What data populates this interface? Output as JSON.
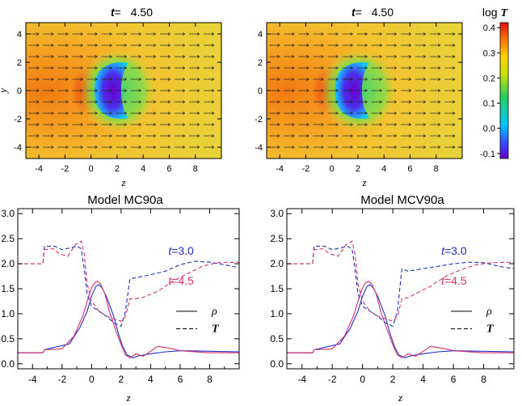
{
  "colors": {
    "blue": "#1f2fc8",
    "magenta": "#d8306e",
    "arrow": "#222222"
  },
  "chart_data": [
    {
      "type": "heatmap",
      "title": {
        "t_label": "t",
        "eq": "=",
        "value": "4.50"
      },
      "xlabel": "z",
      "ylabel": "y",
      "xlim": [
        -5,
        10
      ],
      "ylim": [
        -4.8,
        4.8
      ],
      "xticks": [
        "-4",
        "-2",
        "0",
        "2",
        "4",
        "6",
        "8"
      ],
      "yticks": [
        "4",
        "2",
        "0",
        "-2",
        "-4"
      ],
      "field": "log T",
      "grid": "off"
    },
    {
      "type": "heatmap",
      "title": {
        "t_label": "t",
        "eq": "=",
        "value": "4.50"
      },
      "xlabel": "z",
      "ylabel": "",
      "xlim": [
        -5,
        10
      ],
      "ylim": [
        -4.8,
        4.8
      ],
      "xticks": [
        "-4",
        "-2",
        "0",
        "2",
        "4",
        "6",
        "8"
      ],
      "yticks": [
        "4",
        "2",
        "0",
        "-2",
        "-4"
      ],
      "field": "log T",
      "grid": "off"
    },
    {
      "type": "colorbar",
      "label_prefix": "log",
      "label_var": "T",
      "range": [
        -0.12,
        0.42
      ],
      "ticks": [
        "0.4",
        "0.3",
        "0.2",
        "0.1",
        "0.0",
        "-0.1"
      ],
      "tick_values": [
        0.4,
        0.3,
        0.2,
        0.1,
        0.0,
        -0.1
      ]
    },
    {
      "type": "line",
      "title": "Model MC90a",
      "xlabel": "z",
      "ylabel": "",
      "xlim": [
        -5,
        10
      ],
      "ylim": [
        -0.1,
        3.1
      ],
      "xticks": [
        "-4",
        "-2",
        "0",
        "2",
        "4",
        "6",
        "8"
      ],
      "yticks": [
        "3.0",
        "2.5",
        "2.0",
        "1.5",
        "1.0",
        "0.5",
        "0.0"
      ],
      "legend": {
        "position": "bottom-right",
        "rho": "ρ",
        "T": "T"
      },
      "annotations": [
        {
          "text": "t=3.0",
          "color": "blue",
          "x": 5.2,
          "y": 2.18
        },
        {
          "text": "t=4.5",
          "color": "magenta",
          "x": 5.2,
          "y": 1.58
        }
      ],
      "series": [
        {
          "name": "rho, t=3.0",
          "color": "blue",
          "dash": "solid",
          "x": [
            -5,
            -3.3,
            -3.2,
            -1.5,
            -0.8,
            -0.3,
            0.0,
            0.3,
            0.5,
            0.7,
            1.0,
            1.5,
            1.8,
            2.1,
            2.4,
            2.8,
            3.2,
            4,
            5,
            6,
            8,
            10
          ],
          "y": [
            0.22,
            0.22,
            0.28,
            0.4,
            0.72,
            1.05,
            1.35,
            1.55,
            1.58,
            1.52,
            1.35,
            0.95,
            0.62,
            0.35,
            0.18,
            0.12,
            0.16,
            0.2,
            0.24,
            0.26,
            0.25,
            0.24
          ]
        },
        {
          "name": "rho, t=4.5",
          "color": "magenta",
          "dash": "solid",
          "x": [
            -5,
            -3.3,
            -3.2,
            -2.0,
            -1.2,
            -0.6,
            -0.2,
            0.0,
            0.2,
            0.4,
            0.6,
            0.9,
            1.2,
            1.6,
            2.0,
            2.3,
            2.6,
            3.0,
            3.5,
            4.5,
            5.5,
            6,
            8,
            10
          ],
          "y": [
            0.22,
            0.22,
            0.28,
            0.3,
            0.55,
            0.95,
            1.35,
            1.52,
            1.62,
            1.65,
            1.6,
            1.4,
            1.05,
            0.7,
            0.38,
            0.18,
            0.12,
            0.2,
            0.15,
            0.35,
            0.3,
            0.26,
            0.22,
            0.22
          ]
        },
        {
          "name": "T, t=3.0",
          "color": "blue",
          "dash": "dashed",
          "x": [
            -5,
            -3.3,
            -3.2,
            -2.5,
            -2.0,
            -1.4,
            -1.0,
            -0.7,
            -0.5,
            -0.3,
            0.0,
            0.5,
            1.0,
            1.5,
            2.0,
            2.3,
            2.6,
            3.0,
            4.0,
            5.0,
            6.0,
            7.0,
            8.0,
            9.0,
            10
          ],
          "y": [
            2.0,
            2.0,
            2.35,
            2.35,
            2.28,
            2.32,
            2.35,
            2.3,
            1.9,
            1.4,
            1.15,
            1.05,
            0.95,
            0.82,
            0.75,
            1.05,
            1.7,
            1.72,
            1.78,
            1.85,
            1.98,
            2.05,
            2.03,
            1.98,
            1.92
          ]
        },
        {
          "name": "T, t=4.5",
          "color": "magenta",
          "dash": "dashed",
          "x": [
            -5,
            -3.3,
            -3.2,
            -2.6,
            -2.2,
            -1.6,
            -1.1,
            -0.7,
            -0.5,
            -0.3,
            0.0,
            0.5,
            1.0,
            1.5,
            2.0,
            2.3,
            2.6,
            3.0,
            3.5,
            4.5,
            5.5,
            6.5,
            7.5,
            8.5,
            10
          ],
          "y": [
            2.0,
            2.0,
            2.28,
            2.3,
            2.2,
            2.15,
            2.38,
            2.45,
            2.2,
            1.6,
            1.25,
            1.05,
            0.95,
            0.9,
            0.85,
            0.95,
            1.3,
            1.3,
            1.33,
            1.45,
            1.65,
            1.8,
            1.95,
            2.02,
            2.03
          ]
        }
      ]
    },
    {
      "type": "line",
      "title": "Model MCV90a",
      "xlabel": "z",
      "ylabel": "",
      "xlim": [
        -5,
        10
      ],
      "ylim": [
        -0.1,
        3.1
      ],
      "xticks": [
        "-4",
        "-2",
        "0",
        "2",
        "4",
        "6",
        "8"
      ],
      "yticks": [
        "3.0",
        "2.5",
        "2.0",
        "1.5",
        "1.0",
        "0.5",
        "0.0"
      ],
      "legend": {
        "position": "bottom-right",
        "rho": "ρ",
        "T": "T"
      },
      "annotations": [
        {
          "text": "t=3.0",
          "color": "blue",
          "x": 5.2,
          "y": 2.18
        },
        {
          "text": "t=4.5",
          "color": "magenta",
          "x": 5.2,
          "y": 1.58
        }
      ],
      "series": [
        {
          "name": "rho, t=3.0",
          "color": "blue",
          "dash": "solid",
          "x": [
            -5,
            -3.3,
            -3.2,
            -1.5,
            -0.8,
            -0.3,
            0.0,
            0.3,
            0.5,
            0.7,
            1.0,
            1.5,
            1.8,
            2.1,
            2.4,
            2.8,
            3.2,
            4,
            5,
            6,
            8,
            10
          ],
          "y": [
            0.22,
            0.22,
            0.28,
            0.4,
            0.72,
            1.05,
            1.35,
            1.55,
            1.58,
            1.52,
            1.35,
            0.95,
            0.62,
            0.35,
            0.18,
            0.12,
            0.16,
            0.2,
            0.24,
            0.26,
            0.25,
            0.24
          ]
        },
        {
          "name": "rho, t=4.5",
          "color": "magenta",
          "dash": "solid",
          "x": [
            -5,
            -3.3,
            -3.2,
            -2.0,
            -1.2,
            -0.6,
            -0.2,
            0.0,
            0.2,
            0.4,
            0.6,
            0.9,
            1.2,
            1.6,
            2.0,
            2.3,
            2.6,
            3.0,
            3.5,
            4.5,
            5.5,
            6,
            8,
            10
          ],
          "y": [
            0.22,
            0.22,
            0.28,
            0.3,
            0.55,
            0.95,
            1.35,
            1.52,
            1.62,
            1.65,
            1.6,
            1.4,
            1.05,
            0.7,
            0.38,
            0.18,
            0.12,
            0.2,
            0.15,
            0.35,
            0.3,
            0.26,
            0.22,
            0.22
          ]
        },
        {
          "name": "T, t=3.0",
          "color": "blue",
          "dash": "dashed",
          "x": [
            -5,
            -3.3,
            -3.2,
            -2.5,
            -2.0,
            -1.4,
            -1.0,
            -0.7,
            -0.5,
            -0.3,
            0.0,
            0.5,
            1.0,
            1.5,
            2.0,
            2.3,
            2.6,
            3.0,
            4.0,
            5.0,
            6.0,
            7.0,
            8.0,
            9.0,
            10
          ],
          "y": [
            2.0,
            2.0,
            2.35,
            2.35,
            2.28,
            2.32,
            2.35,
            2.3,
            1.9,
            1.4,
            1.15,
            1.05,
            0.95,
            0.82,
            0.75,
            1.05,
            1.9,
            1.85,
            1.9,
            1.95,
            2.0,
            2.03,
            2.02,
            1.95,
            1.9
          ]
        },
        {
          "name": "T, t=4.5",
          "color": "magenta",
          "dash": "dashed",
          "x": [
            -5,
            -3.3,
            -3.2,
            -2.6,
            -2.2,
            -1.6,
            -1.1,
            -0.7,
            -0.5,
            -0.3,
            0.0,
            0.5,
            1.0,
            1.5,
            2.0,
            2.3,
            2.6,
            3.0,
            3.5,
            4.5,
            5.5,
            6.5,
            7.5,
            8.5,
            10
          ],
          "y": [
            2.0,
            2.0,
            2.28,
            2.3,
            2.2,
            2.15,
            2.38,
            2.45,
            2.2,
            1.6,
            1.25,
            1.05,
            0.95,
            0.9,
            0.85,
            0.95,
            1.3,
            1.32,
            1.4,
            1.55,
            1.75,
            1.88,
            1.98,
            2.02,
            2.03
          ]
        }
      ]
    }
  ]
}
